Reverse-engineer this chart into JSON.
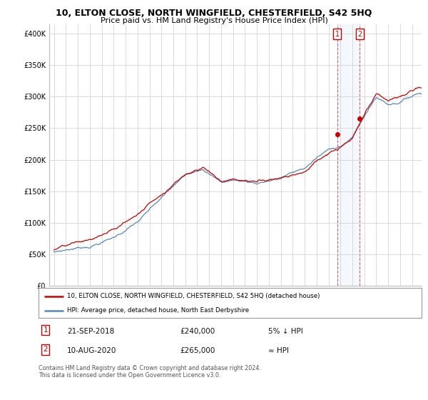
{
  "title": "10, ELTON CLOSE, NORTH WINGFIELD, CHESTERFIELD, S42 5HQ",
  "subtitle": "Price paid vs. HM Land Registry's House Price Index (HPI)",
  "ylabel_values": [
    0,
    50000,
    100000,
    150000,
    200000,
    250000,
    300000,
    350000,
    400000
  ],
  "ylim": [
    0,
    415000
  ],
  "xlim_start": 1994.6,
  "xlim_end": 2025.8,
  "hpi_color": "#5588bb",
  "price_color": "#cc0000",
  "marker1_x": 2018.72,
  "marker1_y": 240000,
  "marker2_x": 2020.61,
  "marker2_y": 265000,
  "legend_label1": "10, ELTON CLOSE, NORTH WINGFIELD, CHESTERFIELD, S42 5HQ (detached house)",
  "legend_label2": "HPI: Average price, detached house, North East Derbyshire",
  "annotation1_num": "1",
  "annotation1_date": "21-SEP-2018",
  "annotation1_price": "£240,000",
  "annotation1_note": "5% ↓ HPI",
  "annotation2_num": "2",
  "annotation2_date": "10-AUG-2020",
  "annotation2_price": "£265,000",
  "annotation2_note": "≈ HPI",
  "footer": "Contains HM Land Registry data © Crown copyright and database right 2024.\nThis data is licensed under the Open Government Licence v3.0.",
  "background_color": "#ffffff",
  "grid_color": "#cccccc"
}
